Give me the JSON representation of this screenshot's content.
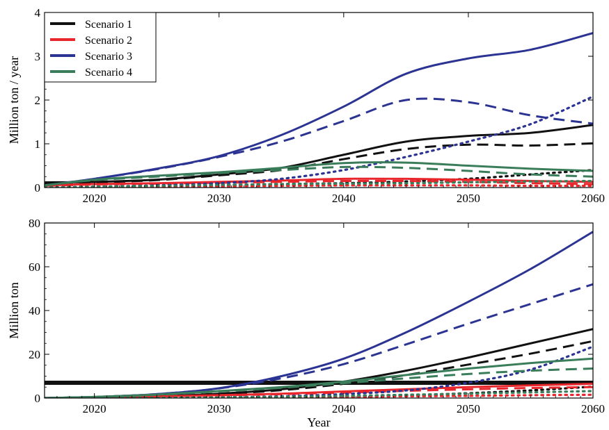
{
  "chart_data": [
    {
      "type": "line",
      "ylabel": "Million ton / year",
      "xlabel": "",
      "xlim": [
        2016,
        2060
      ],
      "ylim": [
        0,
        4
      ],
      "xticks": [
        2020,
        2030,
        2040,
        2050,
        2060
      ],
      "yticks": [
        0,
        1,
        2,
        3,
        4
      ],
      "grid": false,
      "legend": {
        "position": "top-left",
        "entries": [
          {
            "label": "Scenario 1",
            "color": "#111111"
          },
          {
            "label": "Scenario 2",
            "color": "#e8262b"
          },
          {
            "label": "Scenario 3",
            "color": "#2b3393"
          },
          {
            "label": "Scenario 4",
            "color": "#3a7d5a"
          }
        ]
      },
      "series": [
        {
          "color": "#111111",
          "dash": "solid",
          "x": [
            2016,
            2020,
            2025,
            2030,
            2035,
            2040,
            2045,
            2050,
            2055,
            2060
          ],
          "y": [
            0.12,
            0.13,
            0.18,
            0.3,
            0.45,
            0.75,
            1.05,
            1.18,
            1.25,
            1.43
          ]
        },
        {
          "color": "#111111",
          "dash": "dashed",
          "x": [
            2016,
            2020,
            2025,
            2030,
            2035,
            2040,
            2045,
            2050,
            2055,
            2060
          ],
          "y": [
            0.1,
            0.12,
            0.17,
            0.28,
            0.4,
            0.65,
            0.88,
            0.98,
            0.96,
            1.01
          ]
        },
        {
          "color": "#111111",
          "dash": "dotted",
          "x": [
            2016,
            2020,
            2025,
            2030,
            2035,
            2040,
            2045,
            2050,
            2055,
            2060
          ],
          "y": [
            0.0,
            0.0,
            0.02,
            0.05,
            0.08,
            0.1,
            0.14,
            0.2,
            0.3,
            0.4
          ]
        },
        {
          "color": "#e8262b",
          "dash": "solid",
          "x": [
            2016,
            2020,
            2025,
            2030,
            2035,
            2040,
            2045,
            2050,
            2055,
            2060
          ],
          "y": [
            0.05,
            0.08,
            0.1,
            0.13,
            0.16,
            0.2,
            0.2,
            0.18,
            0.15,
            0.13
          ]
        },
        {
          "color": "#e8262b",
          "dash": "dashed",
          "x": [
            2016,
            2020,
            2025,
            2030,
            2035,
            2040,
            2045,
            2050,
            2055,
            2060
          ],
          "y": [
            0.04,
            0.07,
            0.09,
            0.11,
            0.13,
            0.15,
            0.15,
            0.13,
            0.1,
            0.08
          ]
        },
        {
          "color": "#e8262b",
          "dash": "dotted",
          "x": [
            2016,
            2020,
            2025,
            2030,
            2035,
            2040,
            2045,
            2050,
            2055,
            2060
          ],
          "y": [
            0.0,
            0.01,
            0.02,
            0.03,
            0.04,
            0.05,
            0.05,
            0.05,
            0.04,
            0.04
          ]
        },
        {
          "color": "#2b3393",
          "dash": "solid",
          "x": [
            2016,
            2020,
            2025,
            2030,
            2035,
            2040,
            2045,
            2050,
            2055,
            2060
          ],
          "y": [
            0.05,
            0.2,
            0.43,
            0.72,
            1.2,
            1.85,
            2.6,
            2.95,
            3.15,
            3.53
          ]
        },
        {
          "color": "#2b3393",
          "dash": "dashed",
          "x": [
            2016,
            2020,
            2025,
            2030,
            2035,
            2040,
            2045,
            2050,
            2055,
            2060
          ],
          "y": [
            0.05,
            0.2,
            0.42,
            0.7,
            1.05,
            1.52,
            2.0,
            1.95,
            1.65,
            1.46
          ]
        },
        {
          "color": "#2b3393",
          "dash": "dotted",
          "x": [
            2016,
            2020,
            2025,
            2030,
            2035,
            2040,
            2045,
            2050,
            2055,
            2060
          ],
          "y": [
            0.0,
            0.02,
            0.05,
            0.1,
            0.2,
            0.4,
            0.7,
            1.05,
            1.45,
            2.08
          ]
        },
        {
          "color": "#3a7d5a",
          "dash": "solid",
          "x": [
            2016,
            2020,
            2025,
            2030,
            2035,
            2040,
            2045,
            2050,
            2055,
            2060
          ],
          "y": [
            0.05,
            0.18,
            0.27,
            0.35,
            0.45,
            0.56,
            0.57,
            0.5,
            0.43,
            0.38
          ]
        },
        {
          "color": "#3a7d5a",
          "dash": "dashed",
          "x": [
            2016,
            2020,
            2025,
            2030,
            2035,
            2040,
            2045,
            2050,
            2055,
            2060
          ],
          "y": [
            0.05,
            0.17,
            0.25,
            0.33,
            0.4,
            0.47,
            0.45,
            0.38,
            0.3,
            0.25
          ]
        },
        {
          "color": "#3a7d5a",
          "dash": "dotted",
          "x": [
            2016,
            2020,
            2025,
            2030,
            2035,
            2040,
            2045,
            2050,
            2055,
            2060
          ],
          "y": [
            0.0,
            0.02,
            0.04,
            0.06,
            0.08,
            0.09,
            0.1,
            0.12,
            0.14,
            0.15
          ]
        }
      ]
    },
    {
      "type": "line",
      "ylabel": "Million ton",
      "xlabel": "Year",
      "xlim": [
        2016,
        2060
      ],
      "ylim": [
        0,
        80
      ],
      "xticks": [
        2020,
        2030,
        2040,
        2050,
        2060
      ],
      "yticks": [
        0,
        20,
        40,
        60,
        80
      ],
      "grid": false,
      "hline": {
        "y": 7,
        "color": "#111111"
      },
      "series": [
        {
          "color": "#111111",
          "dash": "solid",
          "x": [
            2016,
            2020,
            2025,
            2030,
            2035,
            2040,
            2045,
            2050,
            2055,
            2060
          ],
          "y": [
            0,
            0.4,
            0.9,
            2.0,
            4.0,
            7.5,
            12.5,
            18.5,
            25.0,
            31.5
          ]
        },
        {
          "color": "#111111",
          "dash": "dashed",
          "x": [
            2016,
            2020,
            2025,
            2030,
            2035,
            2040,
            2045,
            2050,
            2055,
            2060
          ],
          "y": [
            0,
            0.4,
            0.9,
            1.9,
            3.6,
            6.5,
            10.5,
            15.3,
            20.3,
            26.0
          ]
        },
        {
          "color": "#111111",
          "dash": "dotted",
          "x": [
            2016,
            2020,
            2025,
            2030,
            2035,
            2040,
            2045,
            2050,
            2055,
            2060
          ],
          "y": [
            0,
            0,
            0.05,
            0.2,
            0.4,
            0.8,
            1.3,
            2.2,
            3.5,
            5.2
          ]
        },
        {
          "color": "#e8262b",
          "dash": "solid",
          "x": [
            2016,
            2020,
            2025,
            2030,
            2035,
            2040,
            2045,
            2050,
            2055,
            2060
          ],
          "y": [
            0,
            0.3,
            0.7,
            1.3,
            2.0,
            3.0,
            4.0,
            5.0,
            5.8,
            6.5
          ]
        },
        {
          "color": "#e8262b",
          "dash": "dashed",
          "x": [
            2016,
            2020,
            2025,
            2030,
            2035,
            2040,
            2045,
            2050,
            2055,
            2060
          ],
          "y": [
            0,
            0.3,
            0.7,
            1.2,
            1.8,
            2.5,
            3.3,
            4.0,
            4.6,
            5.0
          ]
        },
        {
          "color": "#e8262b",
          "dash": "dotted",
          "x": [
            2016,
            2020,
            2025,
            2030,
            2035,
            2040,
            2045,
            2050,
            2055,
            2060
          ],
          "y": [
            0,
            0,
            0.05,
            0.15,
            0.3,
            0.5,
            0.8,
            1.0,
            1.3,
            1.5
          ]
        },
        {
          "color": "#2b3393",
          "dash": "solid",
          "x": [
            2016,
            2020,
            2025,
            2030,
            2035,
            2040,
            2045,
            2050,
            2055,
            2060
          ],
          "y": [
            0,
            0.5,
            1.8,
            4.5,
            10.0,
            18.0,
            30.0,
            44.0,
            59.0,
            76.0
          ]
        },
        {
          "color": "#2b3393",
          "dash": "dashed",
          "x": [
            2016,
            2020,
            2025,
            2030,
            2035,
            2040,
            2045,
            2050,
            2055,
            2060
          ],
          "y": [
            0,
            0.5,
            1.8,
            4.4,
            9.0,
            15.5,
            24.5,
            34.0,
            43.0,
            52.0
          ]
        },
        {
          "color": "#2b3393",
          "dash": "dotted",
          "x": [
            2016,
            2020,
            2025,
            2030,
            2035,
            2040,
            2045,
            2050,
            2055,
            2060
          ],
          "y": [
            0,
            0,
            0.1,
            0.3,
            0.8,
            1.8,
            3.5,
            7.0,
            13.0,
            23.5
          ]
        },
        {
          "color": "#3a7d5a",
          "dash": "solid",
          "x": [
            2016,
            2020,
            2025,
            2030,
            2035,
            2040,
            2045,
            2050,
            2055,
            2060
          ],
          "y": [
            0,
            0.5,
            1.6,
            3.2,
            5.0,
            7.5,
            10.5,
            13.5,
            16.0,
            18.0
          ]
        },
        {
          "color": "#3a7d5a",
          "dash": "dashed",
          "x": [
            2016,
            2020,
            2025,
            2030,
            2035,
            2040,
            2045,
            2050,
            2055,
            2060
          ],
          "y": [
            0,
            0.5,
            1.5,
            3.0,
            4.7,
            6.8,
            9.0,
            11.0,
            12.5,
            13.5
          ]
        },
        {
          "color": "#3a7d5a",
          "dash": "dotted",
          "x": [
            2016,
            2020,
            2025,
            2030,
            2035,
            2040,
            2045,
            2050,
            2055,
            2060
          ],
          "y": [
            0,
            0,
            0.1,
            0.3,
            0.6,
            1.0,
            1.5,
            2.0,
            2.6,
            3.2
          ]
        }
      ]
    }
  ]
}
